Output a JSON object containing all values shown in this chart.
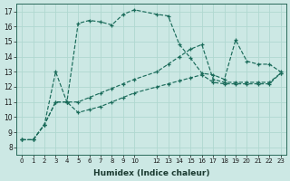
{
  "title": "",
  "xlabel": "Humidex (Indice chaleur)",
  "bg_color": "#cce8e4",
  "line_color": "#1a6b5a",
  "grid_color": "#b0d8d0",
  "xlim": [
    -0.5,
    23.5
  ],
  "ylim": [
    7.5,
    17.5
  ],
  "xticks": [
    0,
    1,
    2,
    3,
    4,
    5,
    6,
    7,
    8,
    9,
    10,
    12,
    13,
    14,
    15,
    16,
    17,
    18,
    19,
    20,
    21,
    22,
    23
  ],
  "yticks": [
    8,
    9,
    10,
    11,
    12,
    13,
    14,
    15,
    16,
    17
  ],
  "s1_x": [
    0,
    1,
    2,
    3,
    4,
    5,
    6,
    7,
    8,
    9,
    10,
    12,
    13,
    14,
    15,
    16,
    17,
    18,
    19,
    20,
    21,
    22,
    23
  ],
  "s1_y": [
    8.5,
    8.5,
    9.5,
    13.0,
    11.0,
    16.2,
    16.4,
    16.3,
    16.1,
    16.8,
    17.1,
    16.8,
    16.7,
    14.8,
    13.9,
    12.9,
    12.8,
    12.5,
    15.1,
    13.7,
    13.5,
    13.5,
    13.0
  ],
  "s2_x": [
    0,
    1,
    2,
    3,
    4,
    5,
    6,
    7,
    8,
    9,
    10,
    12,
    13,
    14,
    15,
    16,
    17,
    18,
    19,
    20,
    21,
    22,
    23
  ],
  "s2_y": [
    8.5,
    8.5,
    9.5,
    11.0,
    11.0,
    11.0,
    11.3,
    11.6,
    11.9,
    12.2,
    12.5,
    13.0,
    13.5,
    14.0,
    14.5,
    14.8,
    12.5,
    12.3,
    12.3,
    12.3,
    12.3,
    12.3,
    12.9
  ],
  "s3_x": [
    0,
    1,
    2,
    3,
    4,
    5,
    6,
    7,
    8,
    9,
    10,
    12,
    13,
    14,
    15,
    16,
    17,
    18,
    19,
    20,
    21,
    22,
    23
  ],
  "s3_y": [
    8.5,
    8.5,
    9.5,
    11.0,
    11.0,
    10.3,
    10.5,
    10.7,
    11.0,
    11.3,
    11.6,
    12.0,
    12.2,
    12.4,
    12.6,
    12.8,
    12.3,
    12.2,
    12.2,
    12.2,
    12.2,
    12.2,
    12.9
  ]
}
